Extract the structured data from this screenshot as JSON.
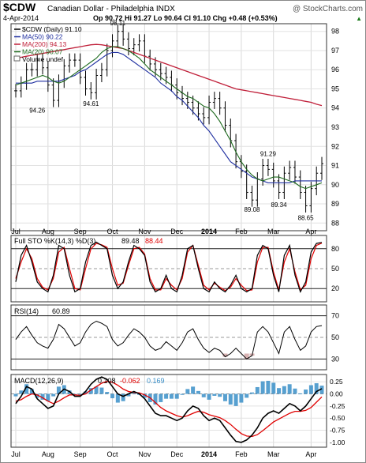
{
  "header": {
    "symbol": "$CDW",
    "description": "Canadian Dollar - Philadelphia INDX",
    "watermark": "@ StockCharts.com",
    "date": "4-Apr-2014",
    "ohlc_line": "Op 90.72  Hi 91.27  Lo 90.64  Cl 91.10  Chg +0.48 (+0.53%)",
    "ohlc_arrow": "▲"
  },
  "legend": {
    "price": "$CDW (Daily) 91.10",
    "ma50": "MA(50) 90.22",
    "ma200": "MA(200) 94.13",
    "ma20": "MA(20) 90.07",
    "volume": "Volume undef"
  },
  "panels": {
    "sto_title": "Full STO %K(14,3) %D(3)",
    "sto_k_value": "89.48",
    "sto_d_value": "88.44",
    "rsi_title": "RSI(14)",
    "rsi_value": "60.89",
    "macd_title": "MACD(12,26,9)",
    "macd_value": "0.108",
    "signal_value": "-0.062",
    "hist_value": "0.169"
  },
  "x_axis": {
    "labels": [
      "Jul",
      "Aug",
      "Sep",
      "Oct",
      "Nov",
      "Dec",
      "2014",
      "Feb",
      "Mar",
      "Apr"
    ]
  },
  "colors": {
    "price_bars": "#000000",
    "ma50": "#1f2fa0",
    "ma200": "#c0203a",
    "ma20": "#1e6b1e",
    "sto_k": "#000000",
    "sto_d": "#e00000",
    "macd_line": "#000000",
    "signal_line": "#e00000",
    "histogram": "#3a8fc8",
    "rsi_below": "#c08080"
  },
  "chart_data": {
    "type": "line",
    "x": [
      "Jul",
      "Aug",
      "Sep",
      "Oct",
      "Nov",
      "Dec",
      "2014",
      "Feb",
      "Mar",
      "Apr"
    ],
    "price_panel": {
      "y_ticks": [
        88,
        89,
        90,
        91,
        92,
        93,
        94,
        95,
        96,
        97,
        98
      ],
      "ylim": [
        87.6,
        98.4
      ],
      "close": [
        94.9,
        95.3,
        96.0,
        96.0,
        96.5,
        96.1,
        95.2,
        94.4,
        95.4,
        96.2,
        96.5,
        96.5,
        95.6,
        95.0,
        94.8,
        95.7,
        96.0,
        97.0,
        97.5,
        98.0,
        97.6,
        97.1,
        97.3,
        97.5,
        96.7,
        96.3,
        96.0,
        95.8,
        95.6,
        95.2,
        94.8,
        94.5,
        94.3,
        94.0,
        93.7,
        93.5,
        94.3,
        94.5,
        94.0,
        93.1,
        92.3,
        91.2,
        90.7,
        89.6,
        89.2,
        90.3,
        91.0,
        90.8,
        90.2,
        89.6,
        90.6,
        90.9,
        90.4,
        89.6,
        88.9,
        89.8,
        90.6,
        91.1
      ],
      "ma20": [
        95.2,
        95.3,
        95.4,
        95.5,
        95.6,
        95.7,
        95.6,
        95.4,
        95.3,
        95.4,
        95.6,
        95.8,
        96.0,
        96.2,
        96.4,
        96.6,
        96.9,
        97.1,
        97.2,
        97.2,
        97.1,
        97.0,
        96.8,
        96.6,
        96.3,
        96.0,
        95.8,
        95.6,
        95.4,
        95.2,
        95.0,
        94.8,
        94.6,
        94.5,
        94.3,
        94.1,
        94.0,
        93.7,
        93.3,
        92.8,
        92.3,
        91.7,
        91.2,
        90.8,
        90.5,
        90.3,
        90.2,
        90.3,
        90.4,
        90.4,
        90.3,
        90.2,
        90.1,
        89.9,
        89.8,
        89.9,
        90.0,
        90.1
      ],
      "ma50": [
        95.3,
        95.3,
        95.3,
        95.3,
        95.4,
        95.4,
        95.4,
        95.4,
        95.4,
        95.5,
        95.6,
        95.7,
        95.9,
        96.0,
        96.2,
        96.4,
        96.6,
        96.8,
        96.9,
        96.9,
        96.8,
        96.6,
        96.4,
        96.2,
        96.0,
        95.8,
        95.6,
        95.3,
        95.1,
        94.9,
        94.6,
        94.4,
        94.1,
        93.8,
        93.5,
        93.1,
        92.8,
        92.4,
        92.0,
        91.6,
        91.2,
        91.0,
        90.8,
        90.6,
        90.4,
        90.3,
        90.2,
        90.1,
        90.1,
        90.1,
        90.1,
        90.1,
        90.2,
        90.2,
        90.2,
        90.2,
        90.2,
        90.2
      ],
      "ma200": [
        96.6,
        96.65,
        96.7,
        96.75,
        96.8,
        96.85,
        96.9,
        96.95,
        97.0,
        97.05,
        97.1,
        97.15,
        97.2,
        97.25,
        97.3,
        97.32,
        97.3,
        97.25,
        97.2,
        97.15,
        97.1,
        97.0,
        96.9,
        96.8,
        96.7,
        96.6,
        96.5,
        96.4,
        96.3,
        96.2,
        96.1,
        96.0,
        95.9,
        95.8,
        95.7,
        95.6,
        95.5,
        95.4,
        95.3,
        95.2,
        95.1,
        95.0,
        94.95,
        94.9,
        94.85,
        94.8,
        94.75,
        94.7,
        94.65,
        94.6,
        94.55,
        94.5,
        94.45,
        94.4,
        94.35,
        94.3,
        94.2,
        94.13
      ],
      "annotations": [
        {
          "label": "94.26",
          "idx": 4,
          "value": 94.26
        },
        {
          "label": "94.61",
          "idx": 14,
          "value": 94.61
        },
        {
          "label": "98.11",
          "idx": 19,
          "value": 98.11
        },
        {
          "label": "89.08",
          "idx": 44,
          "value": 89.08
        },
        {
          "label": "91.29",
          "idx": 47,
          "value": 91.29
        },
        {
          "label": "89.34",
          "idx": 49,
          "value": 89.34
        },
        {
          "label": "88.65",
          "idx": 54,
          "value": 88.65
        }
      ]
    },
    "sto_panel": {
      "y_ticks": [
        20,
        50,
        80
      ],
      "ylim": [
        0,
        100
      ],
      "k": [
        30,
        70,
        85,
        60,
        30,
        20,
        15,
        40,
        85,
        80,
        40,
        15,
        20,
        60,
        85,
        90,
        85,
        80,
        40,
        20,
        30,
        60,
        85,
        80,
        70,
        30,
        15,
        20,
        40,
        20,
        15,
        40,
        80,
        85,
        50,
        20,
        15,
        30,
        20,
        15,
        25,
        40,
        20,
        15,
        20,
        70,
        85,
        80,
        40,
        15,
        70,
        85,
        40,
        15,
        30,
        75,
        88,
        89.48
      ],
      "d": [
        35,
        60,
        80,
        65,
        35,
        22,
        18,
        35,
        75,
        82,
        50,
        20,
        18,
        50,
        80,
        88,
        86,
        82,
        50,
        25,
        28,
        55,
        80,
        82,
        72,
        35,
        18,
        18,
        35,
        25,
        18,
        35,
        75,
        85,
        55,
        25,
        18,
        28,
        22,
        17,
        22,
        35,
        25,
        17,
        18,
        60,
        82,
        82,
        45,
        18,
        60,
        80,
        45,
        18,
        25,
        65,
        85,
        88.44
      ]
    },
    "rsi_panel": {
      "y_ticks": [
        30,
        50,
        70
      ],
      "ylim": [
        20,
        80
      ],
      "values": [
        48,
        55,
        60,
        52,
        45,
        42,
        40,
        48,
        62,
        58,
        50,
        42,
        45,
        55,
        62,
        65,
        63,
        60,
        48,
        42,
        45,
        52,
        58,
        55,
        50,
        42,
        38,
        40,
        46,
        42,
        38,
        45,
        55,
        58,
        48,
        40,
        36,
        40,
        38,
        32,
        35,
        40,
        35,
        30,
        33,
        55,
        60,
        55,
        45,
        35,
        55,
        60,
        48,
        38,
        42,
        55,
        60,
        60.89
      ]
    },
    "macd_panel": {
      "y_ticks": [
        0.25,
        0.0,
        -0.25,
        -0.5,
        -0.75,
        -1.0
      ],
      "ylim": [
        -1.1,
        0.4
      ],
      "macd": [
        -0.2,
        -0.05,
        0.15,
        0.1,
        -0.1,
        -0.2,
        -0.3,
        -0.25,
        0.0,
        0.1,
        0.05,
        -0.05,
        -0.05,
        0.05,
        0.2,
        0.3,
        0.35,
        0.3,
        0.15,
        0.0,
        -0.05,
        0.0,
        0.05,
        0.0,
        -0.1,
        -0.25,
        -0.4,
        -0.45,
        -0.45,
        -0.5,
        -0.55,
        -0.5,
        -0.35,
        -0.25,
        -0.3,
        -0.45,
        -0.55,
        -0.5,
        -0.55,
        -0.7,
        -0.85,
        -0.98,
        -1.0,
        -0.95,
        -0.85,
        -0.7,
        -0.5,
        -0.4,
        -0.35,
        -0.4,
        -0.3,
        -0.2,
        -0.25,
        -0.35,
        -0.25,
        -0.1,
        0.05,
        0.108
      ],
      "signal": [
        -0.15,
        -0.12,
        -0.05,
        0.0,
        -0.02,
        -0.08,
        -0.15,
        -0.2,
        -0.15,
        -0.08,
        -0.02,
        -0.02,
        -0.03,
        0.0,
        0.08,
        0.15,
        0.22,
        0.26,
        0.24,
        0.18,
        0.1,
        0.05,
        0.03,
        0.02,
        -0.02,
        -0.08,
        -0.18,
        -0.28,
        -0.35,
        -0.4,
        -0.45,
        -0.48,
        -0.45,
        -0.4,
        -0.36,
        -0.38,
        -0.43,
        -0.46,
        -0.49,
        -0.55,
        -0.63,
        -0.73,
        -0.82,
        -0.87,
        -0.88,
        -0.84,
        -0.76,
        -0.67,
        -0.58,
        -0.52,
        -0.46,
        -0.4,
        -0.36,
        -0.36,
        -0.34,
        -0.28,
        -0.17,
        -0.062
      ]
    }
  }
}
